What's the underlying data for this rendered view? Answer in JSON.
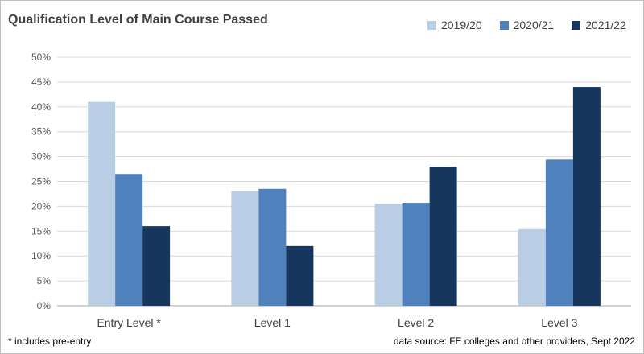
{
  "chart_data": {
    "type": "bar",
    "title": "Qualification Level of Main Course Passed",
    "categories": [
      "Entry Level *",
      "Level 1",
      "Level 2",
      "Level 3"
    ],
    "series": [
      {
        "name": "2019/20",
        "color": "#b9cde5",
        "values": [
          41,
          23,
          20.5,
          15.4
        ]
      },
      {
        "name": "2020/21",
        "color": "#4f81bd",
        "values": [
          26.5,
          23.5,
          20.7,
          29.4
        ]
      },
      {
        "name": "2021/22",
        "color": "#17365d",
        "values": [
          16,
          12,
          28,
          44
        ]
      }
    ],
    "ylim": [
      0,
      50
    ],
    "yticks": [
      0,
      5,
      10,
      15,
      20,
      25,
      30,
      35,
      40,
      45,
      50
    ],
    "ytick_labels": [
      "0%",
      "5%",
      "10%",
      "15%",
      "20%",
      "25%",
      "30%",
      "35%",
      "40%",
      "45%",
      "50%"
    ],
    "xlabel": "",
    "ylabel": "",
    "grid": true,
    "legend_position": "top-right"
  },
  "footnote": "* includes pre-entry",
  "source": "data source: FE colleges and other providers, Sept 2022"
}
